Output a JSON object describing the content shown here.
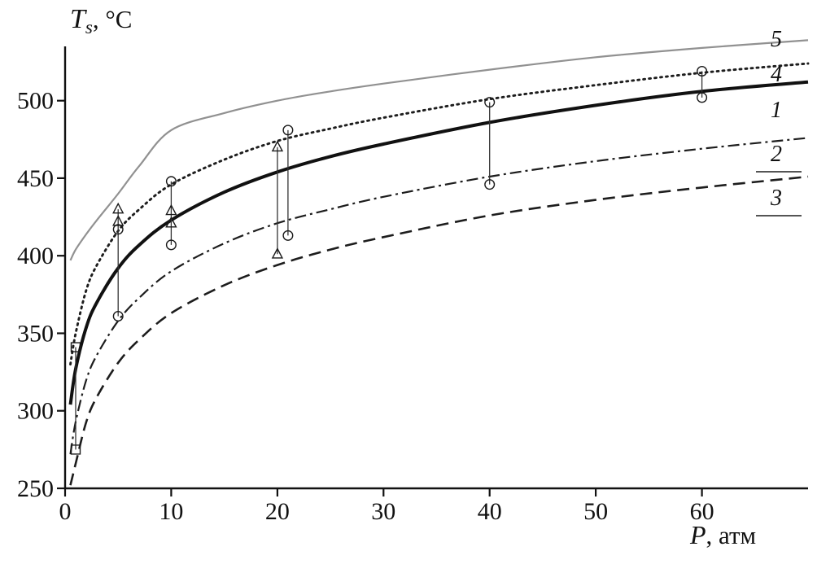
{
  "title": {
    "symbol": "T",
    "subscript": "s",
    "suffix": ", °C"
  },
  "xlabel": {
    "symbol": "P",
    "suffix": ", атм"
  },
  "chart_data": {
    "type": "line",
    "xlabel": "P, атм",
    "ylabel": "Ts, °C",
    "xlim": [
      0,
      70
    ],
    "ylim": [
      250,
      535
    ],
    "x_ticks": [
      0,
      10,
      20,
      30,
      40,
      50,
      60
    ],
    "y_ticks": [
      250,
      300,
      350,
      400,
      450,
      500
    ],
    "grid": false,
    "legend_position": "right-margin",
    "x": [
      0.5,
      1,
      2,
      3,
      5,
      7,
      10,
      15,
      20,
      25,
      30,
      40,
      50,
      60,
      70
    ],
    "series": [
      {
        "label": "1",
        "style": "solid-thick",
        "values": [
          304,
          327,
          354,
          370,
          392,
          407,
          423,
          441,
          454,
          464,
          472,
          486,
          497,
          506,
          512
        ]
      },
      {
        "label": "2",
        "style": "dash-dot",
        "values": [
          272,
          293,
          320,
          336,
          358,
          373,
          390,
          408,
          421,
          430,
          438,
          451,
          461,
          469,
          476
        ]
      },
      {
        "label": "3",
        "style": "dashed",
        "values": [
          252,
          266,
          293,
          309,
          331,
          346,
          363,
          381,
          394,
          404,
          412,
          426,
          436,
          444,
          451
        ]
      },
      {
        "label": "4",
        "style": "dotted",
        "values": [
          330,
          350,
          378,
          394,
          416,
          430,
          446,
          462,
          474,
          482,
          489,
          501,
          510,
          518,
          524
        ]
      },
      {
        "label": "5",
        "style": "solid-thin-gray",
        "values": [
          397,
          404,
          414,
          423,
          440,
          458,
          481,
          492,
          500,
          506,
          511,
          520,
          528,
          534,
          539
        ]
      }
    ],
    "error_bars": [
      {
        "p": 1,
        "line": [
          275,
          341
        ],
        "markers": [
          {
            "t": 341,
            "symbol": "square"
          },
          {
            "t": 275,
            "symbol": "square"
          }
        ]
      },
      {
        "p": 5,
        "line": [
          361,
          430
        ],
        "markers": [
          {
            "t": 430,
            "symbol": "triangle"
          },
          {
            "t": 422,
            "symbol": "triangle"
          },
          {
            "t": 417,
            "symbol": "circle"
          },
          {
            "t": 361,
            "symbol": "circle"
          }
        ]
      },
      {
        "p": 10,
        "line": [
          407,
          448
        ],
        "markers": [
          {
            "t": 448,
            "symbol": "circle"
          },
          {
            "t": 429,
            "symbol": "triangle"
          },
          {
            "t": 421,
            "symbol": "triangle"
          },
          {
            "t": 407,
            "symbol": "circle"
          }
        ]
      },
      {
        "p": 20,
        "line": [
          401,
          470
        ],
        "markers": [
          {
            "t": 470,
            "symbol": "triangle"
          },
          {
            "t": 401,
            "symbol": "triangle"
          }
        ]
      },
      {
        "p": 21,
        "line": [
          413,
          481
        ],
        "markers": [
          {
            "t": 481,
            "symbol": "circle"
          },
          {
            "t": 413,
            "symbol": "circle"
          }
        ]
      },
      {
        "p": 40,
        "line": [
          446,
          499
        ],
        "markers": [
          {
            "t": 499,
            "symbol": "circle"
          },
          {
            "t": 446,
            "symbol": "circle"
          }
        ]
      },
      {
        "p": 60,
        "line": [
          502,
          519
        ],
        "markers": [
          {
            "t": 519,
            "symbol": "circle"
          },
          {
            "t": 502,
            "symbol": "circle"
          }
        ]
      }
    ],
    "colors": {
      "ink": "#111111",
      "gray_curve": "#919191"
    }
  }
}
